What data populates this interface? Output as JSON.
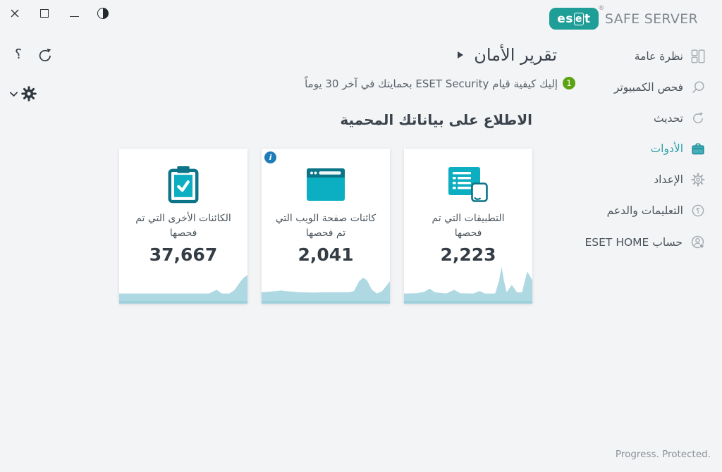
{
  "app": {
    "brand_logo_left": "es",
    "brand_logo_boxed": "e",
    "brand_logo_right": "t",
    "brand_registered": "®",
    "product_name": "SAFE SERVER",
    "footer_tagline": "Progress. Protected."
  },
  "window_controls": [
    {
      "name": "close"
    },
    {
      "name": "maximize"
    },
    {
      "name": "minimize"
    },
    {
      "name": "contrast-toggle"
    }
  ],
  "quick_actions": {
    "help_glyph": "؟",
    "refresh_icon": "circular-arrow-icon",
    "settings_expander_icon": "gear-with-chevron-down-icon"
  },
  "sidebar": {
    "items": [
      {
        "label": "نظرة عامة",
        "icon": "overview-grid-icon",
        "active": false
      },
      {
        "label": "فحص الكمبيوتر",
        "icon": "magnifier-icon",
        "active": false
      },
      {
        "label": "تحديث",
        "icon": "refresh-icon",
        "active": false
      },
      {
        "label": "الأدوات",
        "icon": "toolbox-icon",
        "active": true
      },
      {
        "label": "الإعداد",
        "icon": "gear-icon",
        "active": false
      },
      {
        "label": "التعليمات والدعم",
        "icon": "question-circle-icon",
        "active": false
      },
      {
        "label": "حساب ESET HOME",
        "icon": "account-icon",
        "active": false
      }
    ]
  },
  "header": {
    "title": "تقرير الأمان",
    "subtitle": "إليك كيفية قيام ESET Security بحمايتك في آخر 30 يوماً",
    "notification_count": "1"
  },
  "section": {
    "title": "الاطلاع على بياناتك المحمية"
  },
  "cards": [
    {
      "label": "التطبيقات التي تم فحصها",
      "value": "2,223",
      "icon": "applications-list-icon",
      "info_badge": false
    },
    {
      "label": "كائنات صفحة الويب التي تم فحصها",
      "value": "2,041",
      "icon": "browser-window-icon",
      "info_badge": true,
      "info_glyph": "i"
    },
    {
      "label": "الكائنات الأخرى التي تم فحصها",
      "value": "37,667",
      "icon": "clipboard-check-icon",
      "info_badge": false
    }
  ],
  "chart_data": [
    {
      "type": "area",
      "title": "التطبيقات التي تم فحصها",
      "legend": "none",
      "axes": "hidden",
      "x_range": [
        0,
        100
      ],
      "y_range": [
        0,
        30
      ],
      "points": [
        [
          0,
          6
        ],
        [
          10,
          6.2
        ],
        [
          16,
          7.5
        ],
        [
          20,
          10
        ],
        [
          24,
          7
        ],
        [
          33,
          6
        ],
        [
          39,
          9
        ],
        [
          44,
          6.2
        ],
        [
          54,
          6
        ],
        [
          59,
          8
        ],
        [
          63,
          6
        ],
        [
          71,
          6
        ],
        [
          74,
          16
        ],
        [
          76,
          28
        ],
        [
          78,
          16
        ],
        [
          80,
          7
        ],
        [
          84,
          13
        ],
        [
          86,
          10
        ],
        [
          88,
          7
        ],
        [
          92,
          7
        ],
        [
          96,
          24
        ],
        [
          100,
          17
        ]
      ]
    },
    {
      "type": "area",
      "title": "كائنات صفحة الويب التي تم فحصها",
      "legend": "none",
      "axes": "hidden",
      "x_range": [
        0,
        100
      ],
      "y_range": [
        0,
        30
      ],
      "points": [
        [
          0,
          7
        ],
        [
          6,
          7.5
        ],
        [
          12,
          8
        ],
        [
          15,
          8.5
        ],
        [
          18,
          8
        ],
        [
          30,
          7
        ],
        [
          40,
          6.8
        ],
        [
          50,
          7
        ],
        [
          60,
          7
        ],
        [
          68,
          7
        ],
        [
          72,
          8
        ],
        [
          76,
          16
        ],
        [
          79,
          19
        ],
        [
          82,
          17
        ],
        [
          86,
          9
        ],
        [
          90,
          6
        ],
        [
          94,
          8
        ],
        [
          100,
          16
        ]
      ]
    },
    {
      "type": "area",
      "title": "الكائنات الأخرى التي تم فحصها",
      "legend": "none",
      "axes": "hidden",
      "x_range": [
        0,
        100
      ],
      "y_range": [
        0,
        30
      ],
      "points": [
        [
          0,
          6
        ],
        [
          20,
          6
        ],
        [
          40,
          6
        ],
        [
          55,
          6
        ],
        [
          70,
          6
        ],
        [
          73,
          7.5
        ],
        [
          76,
          9
        ],
        [
          78,
          7.5
        ],
        [
          80,
          6
        ],
        [
          86,
          6
        ],
        [
          90,
          9
        ],
        [
          94,
          15
        ],
        [
          97,
          19
        ],
        [
          100,
          21
        ]
      ]
    }
  ],
  "colors": {
    "accent_teal": "#0caec2",
    "dark_teal": "#0b7486",
    "active_nav_teal": "#2f9faa",
    "badge_green": "#5ca312",
    "info_blue": "#1e7db8",
    "spark_fill": "#aed9e3",
    "card_strip": "#9ed1dd",
    "brand_teal": "#1f9e97"
  }
}
